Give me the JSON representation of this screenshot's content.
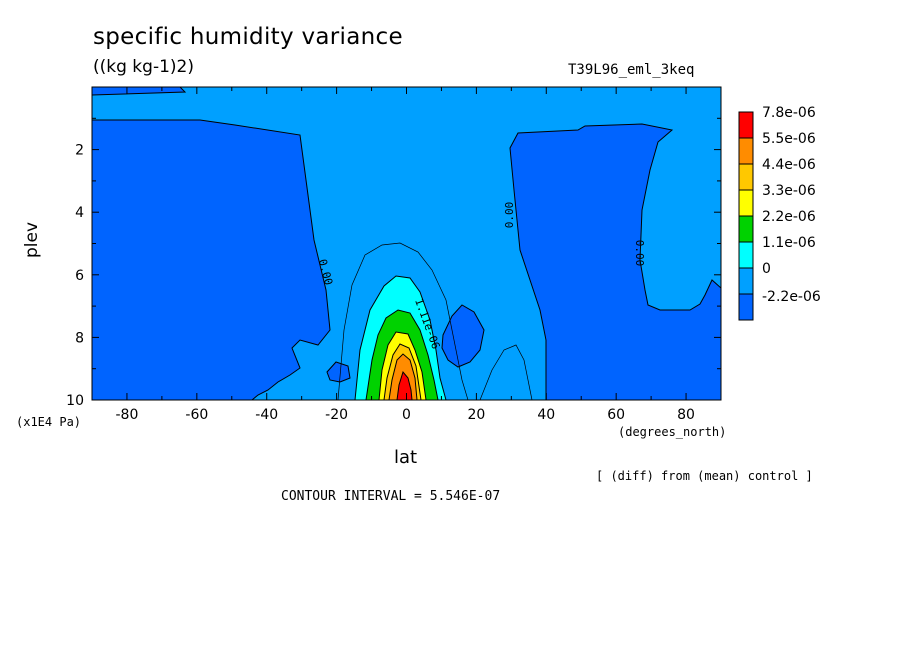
{
  "chart_data": {
    "type": "heatmap",
    "title": "specific humidity variance",
    "subtitle": "((kg kg-1)2)",
    "run_label": "T39L96_eml_3keq",
    "xlabel": "lat",
    "xunit": "(degrees_north)",
    "ylabel": "plev",
    "yunit": "(x1E4 Pa)",
    "xlim": [
      -90,
      90
    ],
    "ylim": [
      10,
      0
    ],
    "xticks": [
      "-80",
      "-60",
      "-40",
      "-20",
      "0",
      "20",
      "40",
      "60",
      "80"
    ],
    "yticks": [
      "2",
      "4",
      "6",
      "8",
      "10"
    ],
    "legend_labels": [
      "7.8e-06",
      "5.5e-06",
      "4.4e-06",
      "3.3e-06",
      "2.2e-06",
      "1.1e-06",
      "0",
      "-2.2e-06"
    ],
    "legend_colors": [
      "#ff0000",
      "#ff8c00",
      "#ffc800",
      "#ffff00",
      "#00d200",
      "#00ffff",
      "#00a0ff",
      "#0064ff"
    ],
    "contour_labels": [
      "0.00",
      "0.00",
      "0.00",
      "1.11e-06"
    ],
    "footnote": "[ (diff) from (mean) control ]",
    "contour_interval": "CONTOUR INTERVAL = 5.546E-07",
    "colors": {
      "bg_level": "#00a0ff",
      "neg_level": "#0064ff"
    }
  }
}
